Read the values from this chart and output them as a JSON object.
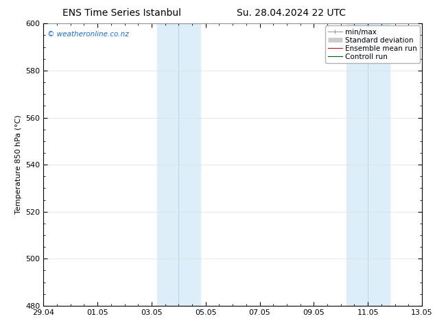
{
  "title_left": "ENS Time Series Istanbul",
  "title_right": "Su. 28.04.2024 22 UTC",
  "ylabel": "Temperature 850 hPa (°C)",
  "ylim": [
    480,
    600
  ],
  "yticks": [
    480,
    500,
    520,
    540,
    560,
    580,
    600
  ],
  "xtick_labels": [
    "29.04",
    "01.05",
    "03.05",
    "05.05",
    "07.05",
    "09.05",
    "11.05",
    "13.05"
  ],
  "xtick_positions": [
    0,
    2,
    4,
    6,
    8,
    10,
    12,
    14
  ],
  "xlim": [
    0,
    14
  ],
  "background_color": "#ffffff",
  "plot_bg_color": "#ffffff",
  "shade_regions": [
    {
      "x_start": 4.2,
      "x_end": 5.0,
      "color": "#ddeef8"
    },
    {
      "x_start": 5.0,
      "x_end": 5.8,
      "color": "#ddeef8"
    },
    {
      "x_start": 11.2,
      "x_end": 12.0,
      "color": "#ddeef8"
    },
    {
      "x_start": 12.0,
      "x_end": 12.8,
      "color": "#ddeef8"
    }
  ],
  "shade_dividers": [
    5.0,
    12.0
  ],
  "watermark_text": "© weatheronline.co.nz",
  "watermark_color": "#1a6bcc",
  "legend_entries": [
    {
      "label": "min/max",
      "color": "#999999",
      "lw": 1.0
    },
    {
      "label": "Standard deviation",
      "color": "#cccccc",
      "lw": 5
    },
    {
      "label": "Ensemble mean run",
      "color": "#dd0000",
      "lw": 1.0
    },
    {
      "label": "Controll run",
      "color": "#005500",
      "lw": 1.0
    }
  ],
  "grid_color": "#dddddd",
  "spine_color": "#000000",
  "title_fontsize": 10,
  "tick_fontsize": 8,
  "ylabel_fontsize": 8,
  "watermark_fontsize": 7.5,
  "legend_fontsize": 7.5
}
